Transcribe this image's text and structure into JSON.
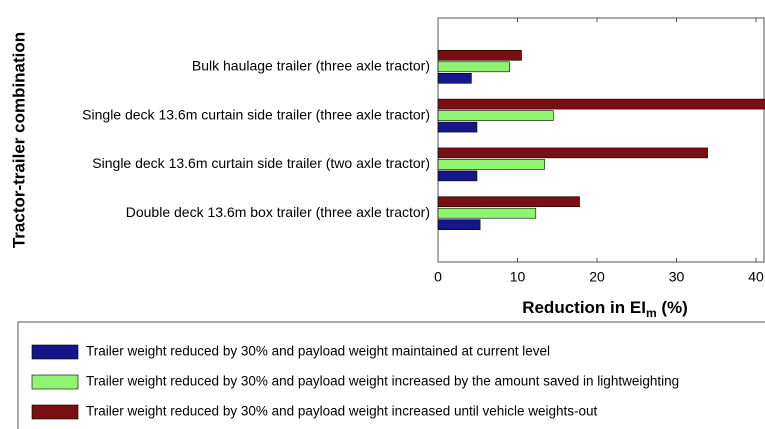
{
  "chart_data": {
    "type": "barh",
    "ylabel": "Tractor-trailer combination",
    "xlabel": [
      "Reduction in EI",
      "m",
      " (%)"
    ],
    "categories": [
      "Bulk haulage trailer (three axle tractor)",
      "Single deck 13.6m curtain side trailer (three axle tractor)",
      "Single deck 13.6m curtain side trailer (two axle tractor)",
      "Double deck 13.6m box trailer (three axle tractor)"
    ],
    "series": [
      {
        "name": "Trailer weight reduced by 30% and payload weight maintained at current level",
        "color": "#16168a",
        "values": [
          4.2,
          4.9,
          4.9,
          5.3
        ]
      },
      {
        "name": "Trailer weight reduced by 30% and payload weight increased by the amount saved in lightweighting",
        "color": "#8ff470",
        "values": [
          9.0,
          14.5,
          13.4,
          12.3
        ]
      },
      {
        "name": "Trailer weight reduced by 30% and payload weight increased until vehicle weights-out",
        "color": "#7a0f12",
        "values": [
          10.5,
          41.2,
          33.9,
          17.8
        ]
      }
    ],
    "xlim": [
      0,
      41
    ],
    "xticks": [
      0,
      10,
      20,
      30,
      40
    ],
    "grid": false
  }
}
